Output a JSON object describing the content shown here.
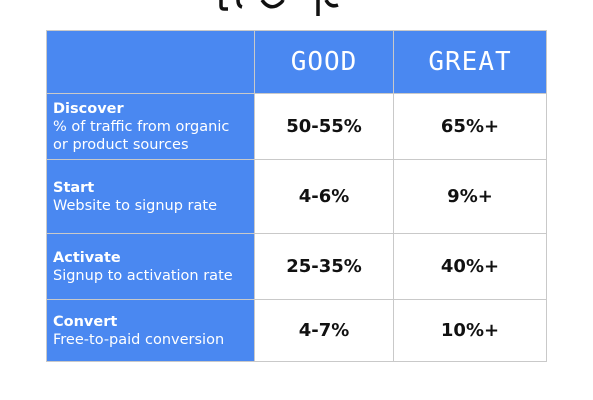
{
  "table": {
    "headers": [
      "",
      "GOOD",
      "GREAT"
    ],
    "rows": [
      {
        "stage": "Discover",
        "desc1": "% of traffic from organic",
        "desc2": "or product sources",
        "good": "50-55%",
        "great": "65%+"
      },
      {
        "stage": "Start",
        "desc1": "Website to signup rate",
        "desc2": "",
        "good": "4-6%",
        "great": "9%+"
      },
      {
        "stage": "Activate",
        "desc1": "Signup to activation rate",
        "desc2": "",
        "good": "25-35%",
        "great": "40%+"
      },
      {
        "stage": "Convert",
        "desc1": "Free-to-paid conversion",
        "desc2": "",
        "good": "4-7%",
        "great": "10%+"
      }
    ]
  },
  "colors": {
    "header_bg": "#4a88f1",
    "header_text": "#ffffff",
    "border": "#c9c9c9"
  }
}
